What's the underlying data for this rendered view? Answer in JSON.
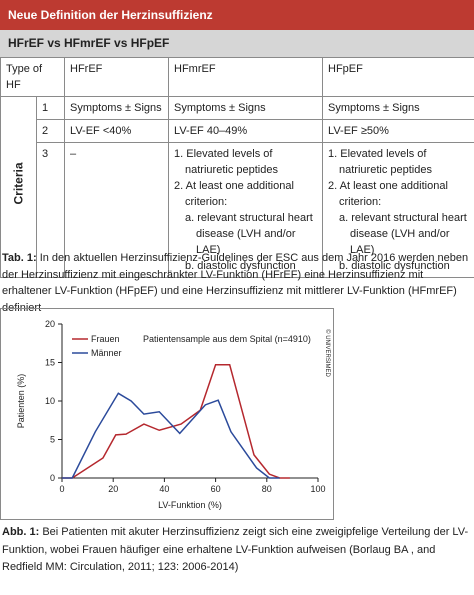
{
  "header": {
    "title": "Neue Definition der Herzinsuffizienz",
    "subtitle": "HFrEF vs HFmrEF vs HFpEF"
  },
  "table": {
    "columns": [
      "Type of HF",
      "HFrEF",
      "HFmrEF",
      "HFpEF"
    ],
    "row_group": "Criteria",
    "rows": [
      {
        "number": "1",
        "cells": [
          "Symptoms ± Signs",
          "Symptoms ± Signs",
          "Symptoms ± Signs"
        ]
      },
      {
        "number": "2",
        "cells": [
          "LV-EF <40%",
          "LV-EF 40–49%",
          "LV-EF ≥50%"
        ]
      },
      {
        "number": "3",
        "cells": [
          {
            "text": "–"
          },
          {
            "items": [
              {
                "text": "1. Elevated levels of natriuretic peptides"
              },
              {
                "text": "2. At least one additional criterion:",
                "subitems": [
                  "a. relevant structural heart disease (LVH and/or LAE)",
                  "b. diastolic dysfunction"
                ]
              }
            ]
          },
          {
            "items": [
              {
                "text": "1. Elevated levels of natriuretic peptides"
              },
              {
                "text": "2. At least one additional criterion:",
                "subitems": [
                  "a. relevant structural heart disease (LVH and/or LAE)",
                  "b. diastolic dysfunction"
                ]
              }
            ]
          }
        ]
      }
    ]
  },
  "table_caption": {
    "label": "Tab. 1:",
    "text": "In den aktuellen Herzinsuffizienz-Guidelines der ESC aus dem Jahr 2016 werden neben der Herzinsuffizienz mit eingeschränkter LV-Funktion (HFrEF) eine Herzinsuffizienz mit erhaltener LV-Funktion (HFpEF) und eine Herzinsuffizienz mit mittlerer LV-Funktion (HFmrEF) definiert"
  },
  "chart_data": {
    "type": "line",
    "annotation": "Patientensample aus dem Spital (n=4910)",
    "copyright": "© UNIVERSIMED",
    "xlabel": "LV-Funktion (%)",
    "ylabel": "Patienten (%)",
    "xlim": [
      0,
      100
    ],
    "xticks": [
      0,
      20,
      40,
      60,
      80,
      100
    ],
    "ylim": [
      0,
      20
    ],
    "yticks": [
      0,
      5,
      10,
      15,
      20
    ],
    "legend": "upper-left",
    "series": [
      {
        "name": "Frauen",
        "color": "#b5282e",
        "x": [
          0,
          4,
          16,
          21,
          25,
          32,
          38,
          46.5,
          54,
          60,
          65.5,
          75,
          81,
          85,
          89
        ],
        "values": [
          0,
          0,
          2.6,
          5.6,
          5.7,
          7,
          6.2,
          7,
          8.8,
          14.7,
          14.7,
          3,
          0.5,
          0,
          0
        ]
      },
      {
        "name": "Männer",
        "color": "#2b4a9b",
        "x": [
          0,
          4,
          13,
          22,
          27,
          32,
          38,
          46,
          56,
          61,
          66,
          76,
          81,
          85
        ],
        "values": [
          0,
          0,
          6,
          11,
          10,
          8.3,
          8.6,
          5.8,
          9.5,
          10.1,
          6,
          1.3,
          0,
          0
        ]
      }
    ]
  },
  "figure_caption": {
    "label": "Abb. 1:",
    "text": "Bei Patienten mit akuter Herzinsuffizienz zeigt sich eine zweigipfelige Verteilung der LV-Funktion, wobei Frauen häufiger eine erhaltene LV-Funktion aufweisen (Borlaug BA , and Redfield MM: Circulation, 2011; 123: 2006-2014)"
  }
}
